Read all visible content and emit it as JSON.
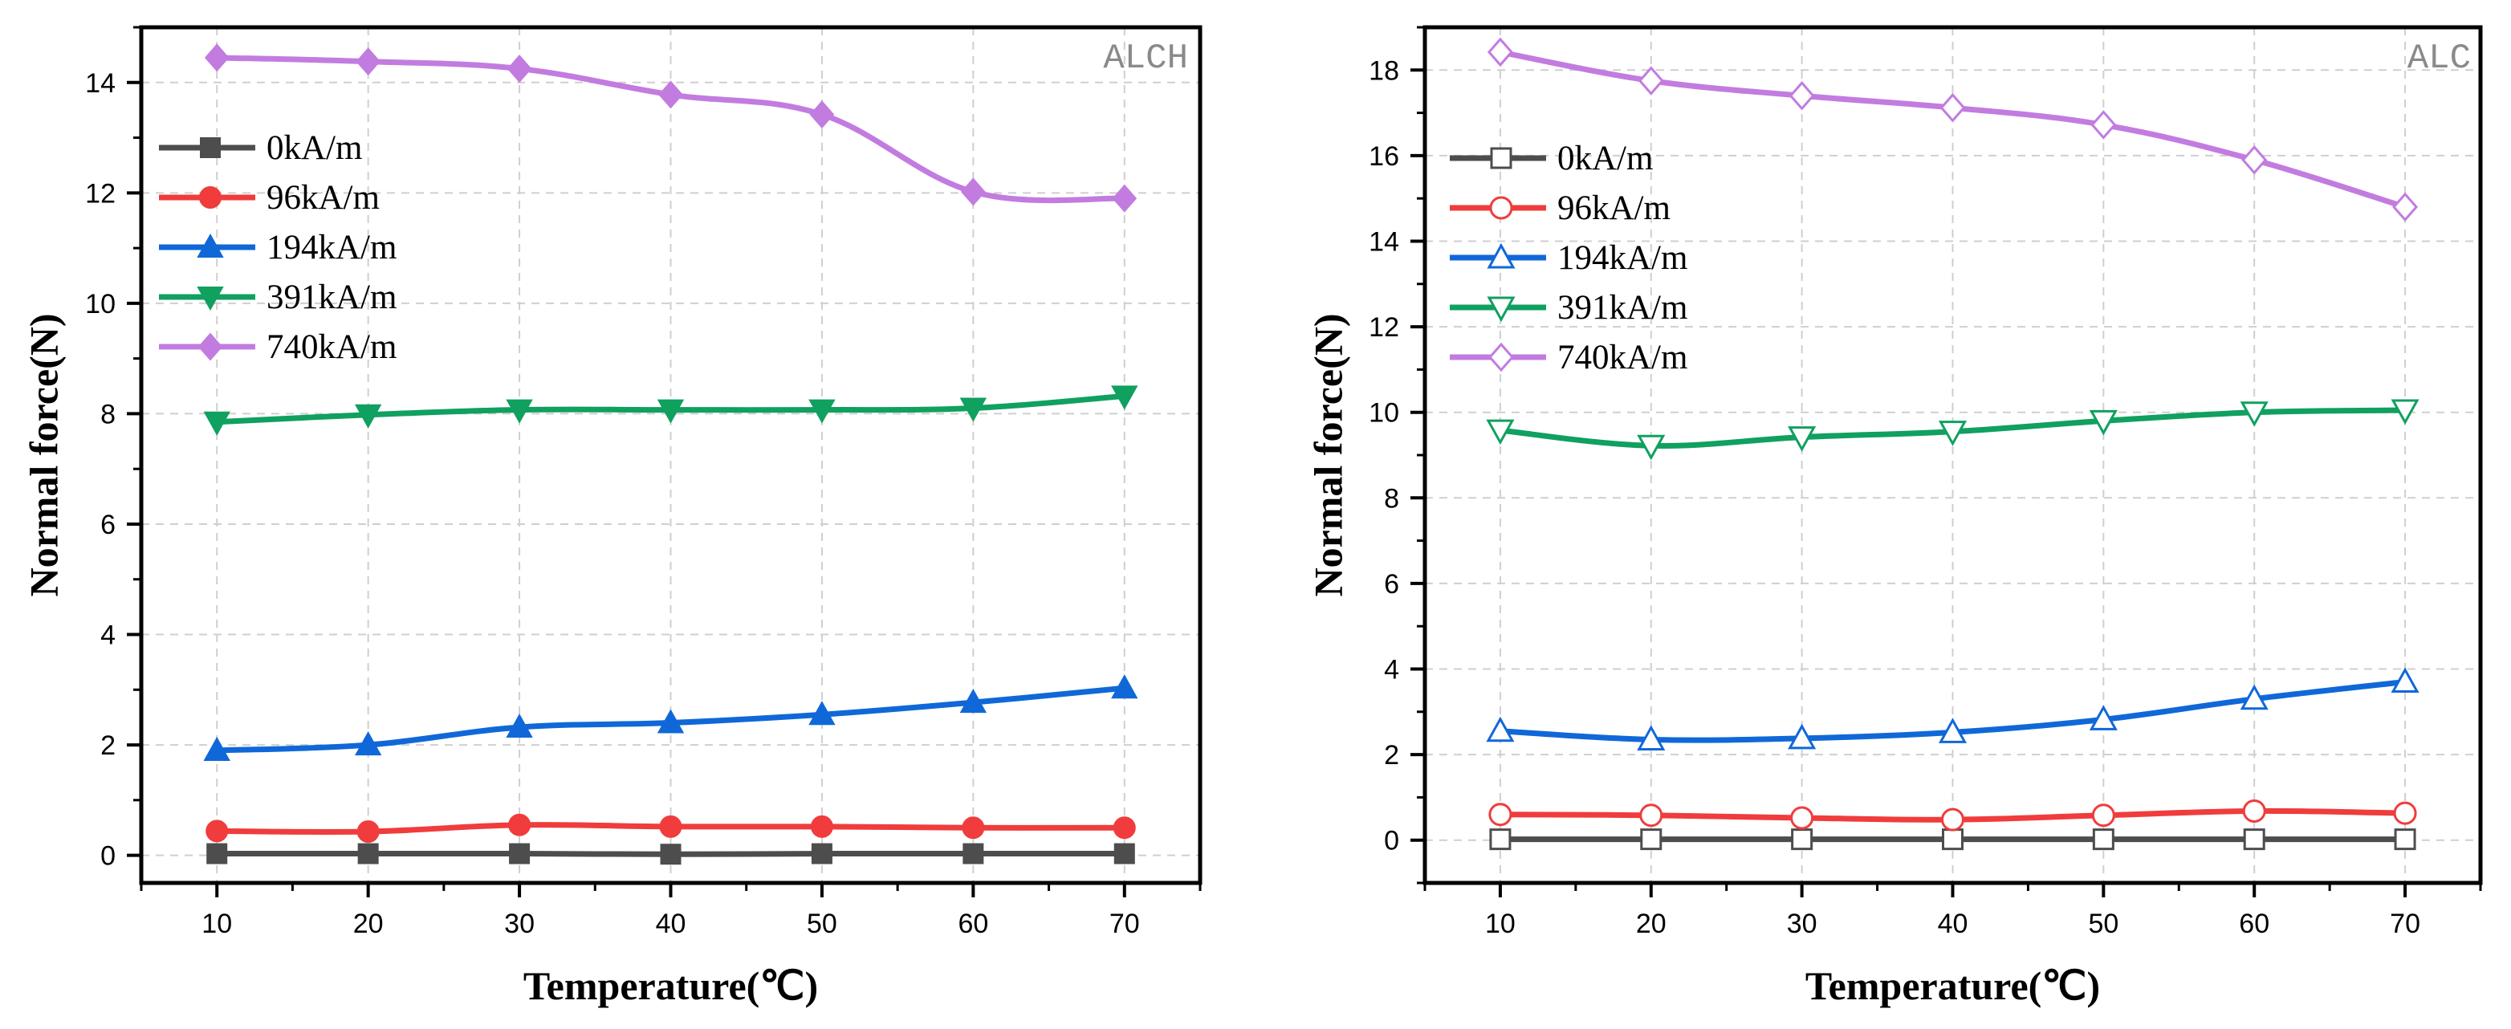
{
  "chart_data": [
    {
      "type": "line",
      "tag": "ALCH",
      "xlabel": "Temperature(℃)",
      "ylabel": "Normal force(N)",
      "x": [
        10,
        20,
        30,
        40,
        50,
        60,
        70
      ],
      "xlim": [
        5,
        75
      ],
      "ylim": [
        -0.5,
        15
      ],
      "xticks": [
        10,
        20,
        30,
        40,
        50,
        60,
        70
      ],
      "yticks": [
        0,
        2,
        4,
        6,
        8,
        10,
        12,
        14
      ],
      "grid": true,
      "legend_position": "top-left",
      "marker_fill": "filled",
      "series": [
        {
          "name": "0kA/m",
          "color": "#4d4d4d",
          "marker": "square",
          "values": [
            0.03,
            0.03,
            0.03,
            0.02,
            0.03,
            0.03,
            0.03
          ]
        },
        {
          "name": "96kA/m",
          "color": "#f03c3c",
          "marker": "circle",
          "values": [
            0.44,
            0.43,
            0.55,
            0.52,
            0.52,
            0.5,
            0.5
          ]
        },
        {
          "name": "194kA/m",
          "color": "#1068d8",
          "marker": "triangle-up",
          "values": [
            1.9,
            2.0,
            2.32,
            2.4,
            2.55,
            2.77,
            3.03
          ]
        },
        {
          "name": "391kA/m",
          "color": "#10a060",
          "marker": "triangle-down",
          "values": [
            7.85,
            7.98,
            8.07,
            8.07,
            8.07,
            8.1,
            8.32
          ]
        },
        {
          "name": "740kA/m",
          "color": "#c27ce0",
          "marker": "diamond",
          "values": [
            14.45,
            14.38,
            14.25,
            13.78,
            13.42,
            12.02,
            11.9
          ]
        }
      ]
    },
    {
      "type": "line",
      "tag": "ALC",
      "xlabel": "Temperature(℃)",
      "ylabel": "Normal force(N)",
      "x": [
        10,
        20,
        30,
        40,
        50,
        60,
        70
      ],
      "xlim": [
        5,
        75
      ],
      "ylim": [
        -1,
        19
      ],
      "xticks": [
        10,
        20,
        30,
        40,
        50,
        60,
        70
      ],
      "yticks": [
        0,
        2,
        4,
        6,
        8,
        10,
        12,
        14,
        16,
        18
      ],
      "grid": true,
      "legend_position": "top-left",
      "marker_fill": "hollow",
      "series": [
        {
          "name": "0kA/m",
          "color": "#4d4d4d",
          "marker": "square",
          "values": [
            0.02,
            0.02,
            0.02,
            0.02,
            0.02,
            0.02,
            0.02
          ]
        },
        {
          "name": "96kA/m",
          "color": "#f03c3c",
          "marker": "circle",
          "values": [
            0.6,
            0.58,
            0.52,
            0.48,
            0.58,
            0.68,
            0.63
          ]
        },
        {
          "name": "194kA/m",
          "color": "#1068d8",
          "marker": "triangle-up",
          "values": [
            2.55,
            2.35,
            2.38,
            2.52,
            2.82,
            3.3,
            3.7
          ]
        },
        {
          "name": "391kA/m",
          "color": "#10a060",
          "marker": "triangle-down",
          "values": [
            9.58,
            9.22,
            9.42,
            9.55,
            9.8,
            10.0,
            10.05
          ]
        },
        {
          "name": "740kA/m",
          "color": "#c27ce0",
          "marker": "diamond",
          "values": [
            18.42,
            17.75,
            17.4,
            17.12,
            16.72,
            15.9,
            14.8
          ]
        }
      ]
    }
  ]
}
